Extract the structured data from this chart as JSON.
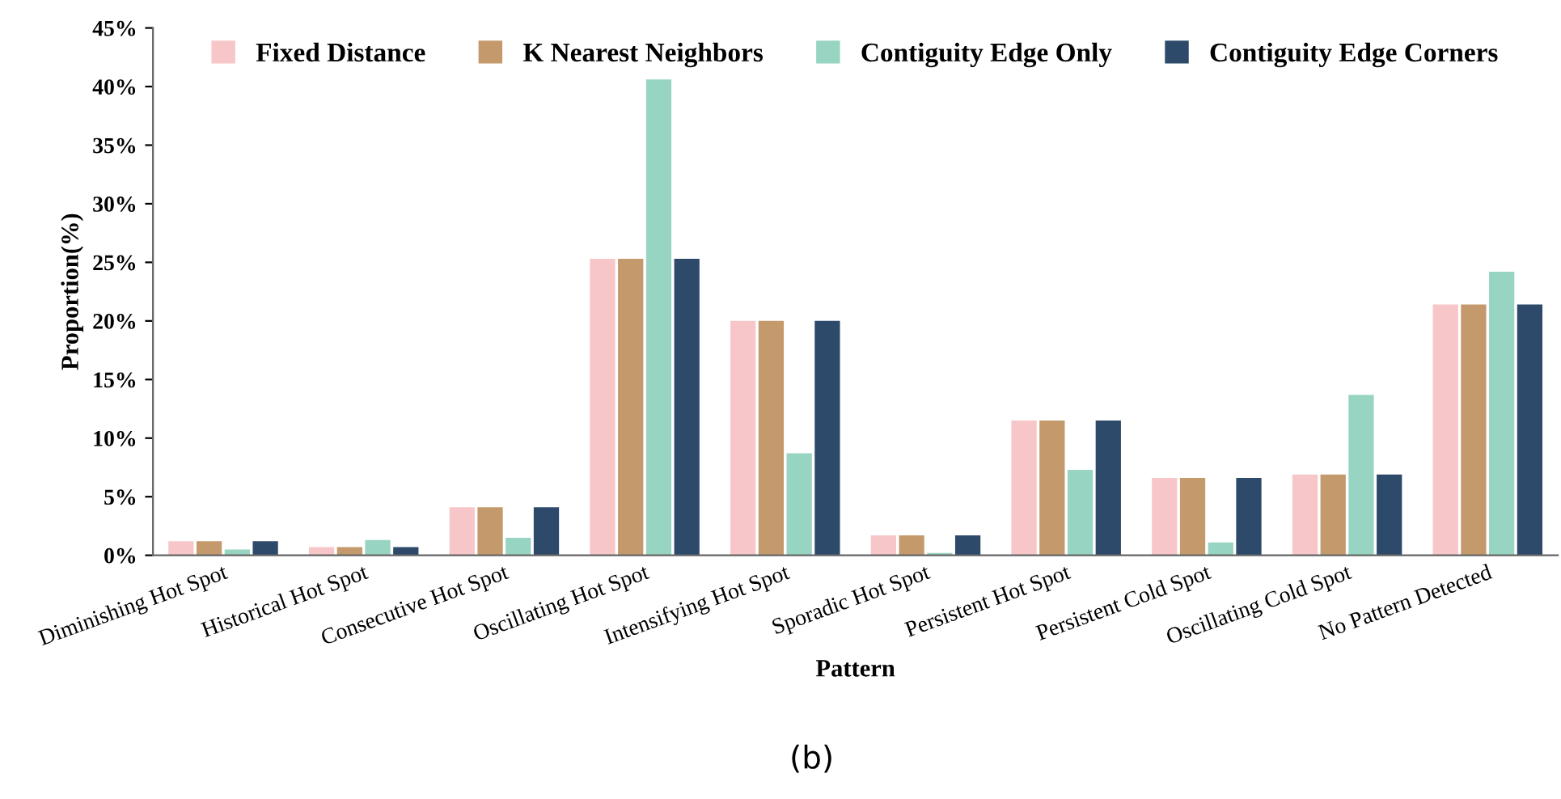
{
  "chart_data": {
    "type": "bar",
    "xlabel": "Pattern",
    "ylabel": "Proportion(%)",
    "categories": [
      "Diminishing Hot Spot",
      "Historical Hot Spot",
      "Consecutive Hot Spot",
      "Oscillating Hot Spot",
      "Intensifying Hot Spot",
      "Sporadic Hot Spot",
      "Persistent Hot Spot",
      "Persistent Cold Spot",
      "Oscillating Cold Spot",
      "No Pattern Detected"
    ],
    "series": [
      {
        "name": "Fixed Distance",
        "color": "#f7c6c9",
        "values": [
          1.2,
          0.7,
          4.1,
          25.3,
          20.0,
          1.7,
          11.5,
          6.6,
          6.9,
          21.4
        ]
      },
      {
        "name": "K Nearest Neighbors",
        "color": "#c49a6c",
        "values": [
          1.2,
          0.7,
          4.1,
          25.3,
          20.0,
          1.7,
          11.5,
          6.6,
          6.9,
          21.4
        ]
      },
      {
        "name": "Contiguity Edge Only",
        "color": "#98d4c2",
        "values": [
          0.5,
          1.3,
          1.5,
          40.6,
          8.7,
          0.2,
          7.3,
          1.1,
          13.7,
          24.2
        ]
      },
      {
        "name": "Contiguity Edge Corners",
        "color": "#2e4a6b",
        "values": [
          1.2,
          0.7,
          4.1,
          25.3,
          20.0,
          1.7,
          11.5,
          6.6,
          6.9,
          21.4
        ]
      }
    ],
    "ylim": [
      0,
      45
    ],
    "yticks": [
      {
        "value": 0,
        "label": "0%"
      },
      {
        "value": 5,
        "label": "5%"
      },
      {
        "value": 10,
        "label": "10%"
      },
      {
        "value": 15,
        "label": "15%"
      },
      {
        "value": 20,
        "label": "20%"
      },
      {
        "value": 25,
        "label": "25%"
      },
      {
        "value": 30,
        "label": "30%"
      },
      {
        "value": 35,
        "label": "35%"
      },
      {
        "value": 40,
        "label": "40%"
      },
      {
        "value": 45,
        "label": "45%"
      }
    ],
    "grid": false,
    "legend": "top",
    "annotations": [
      "(b)"
    ]
  }
}
